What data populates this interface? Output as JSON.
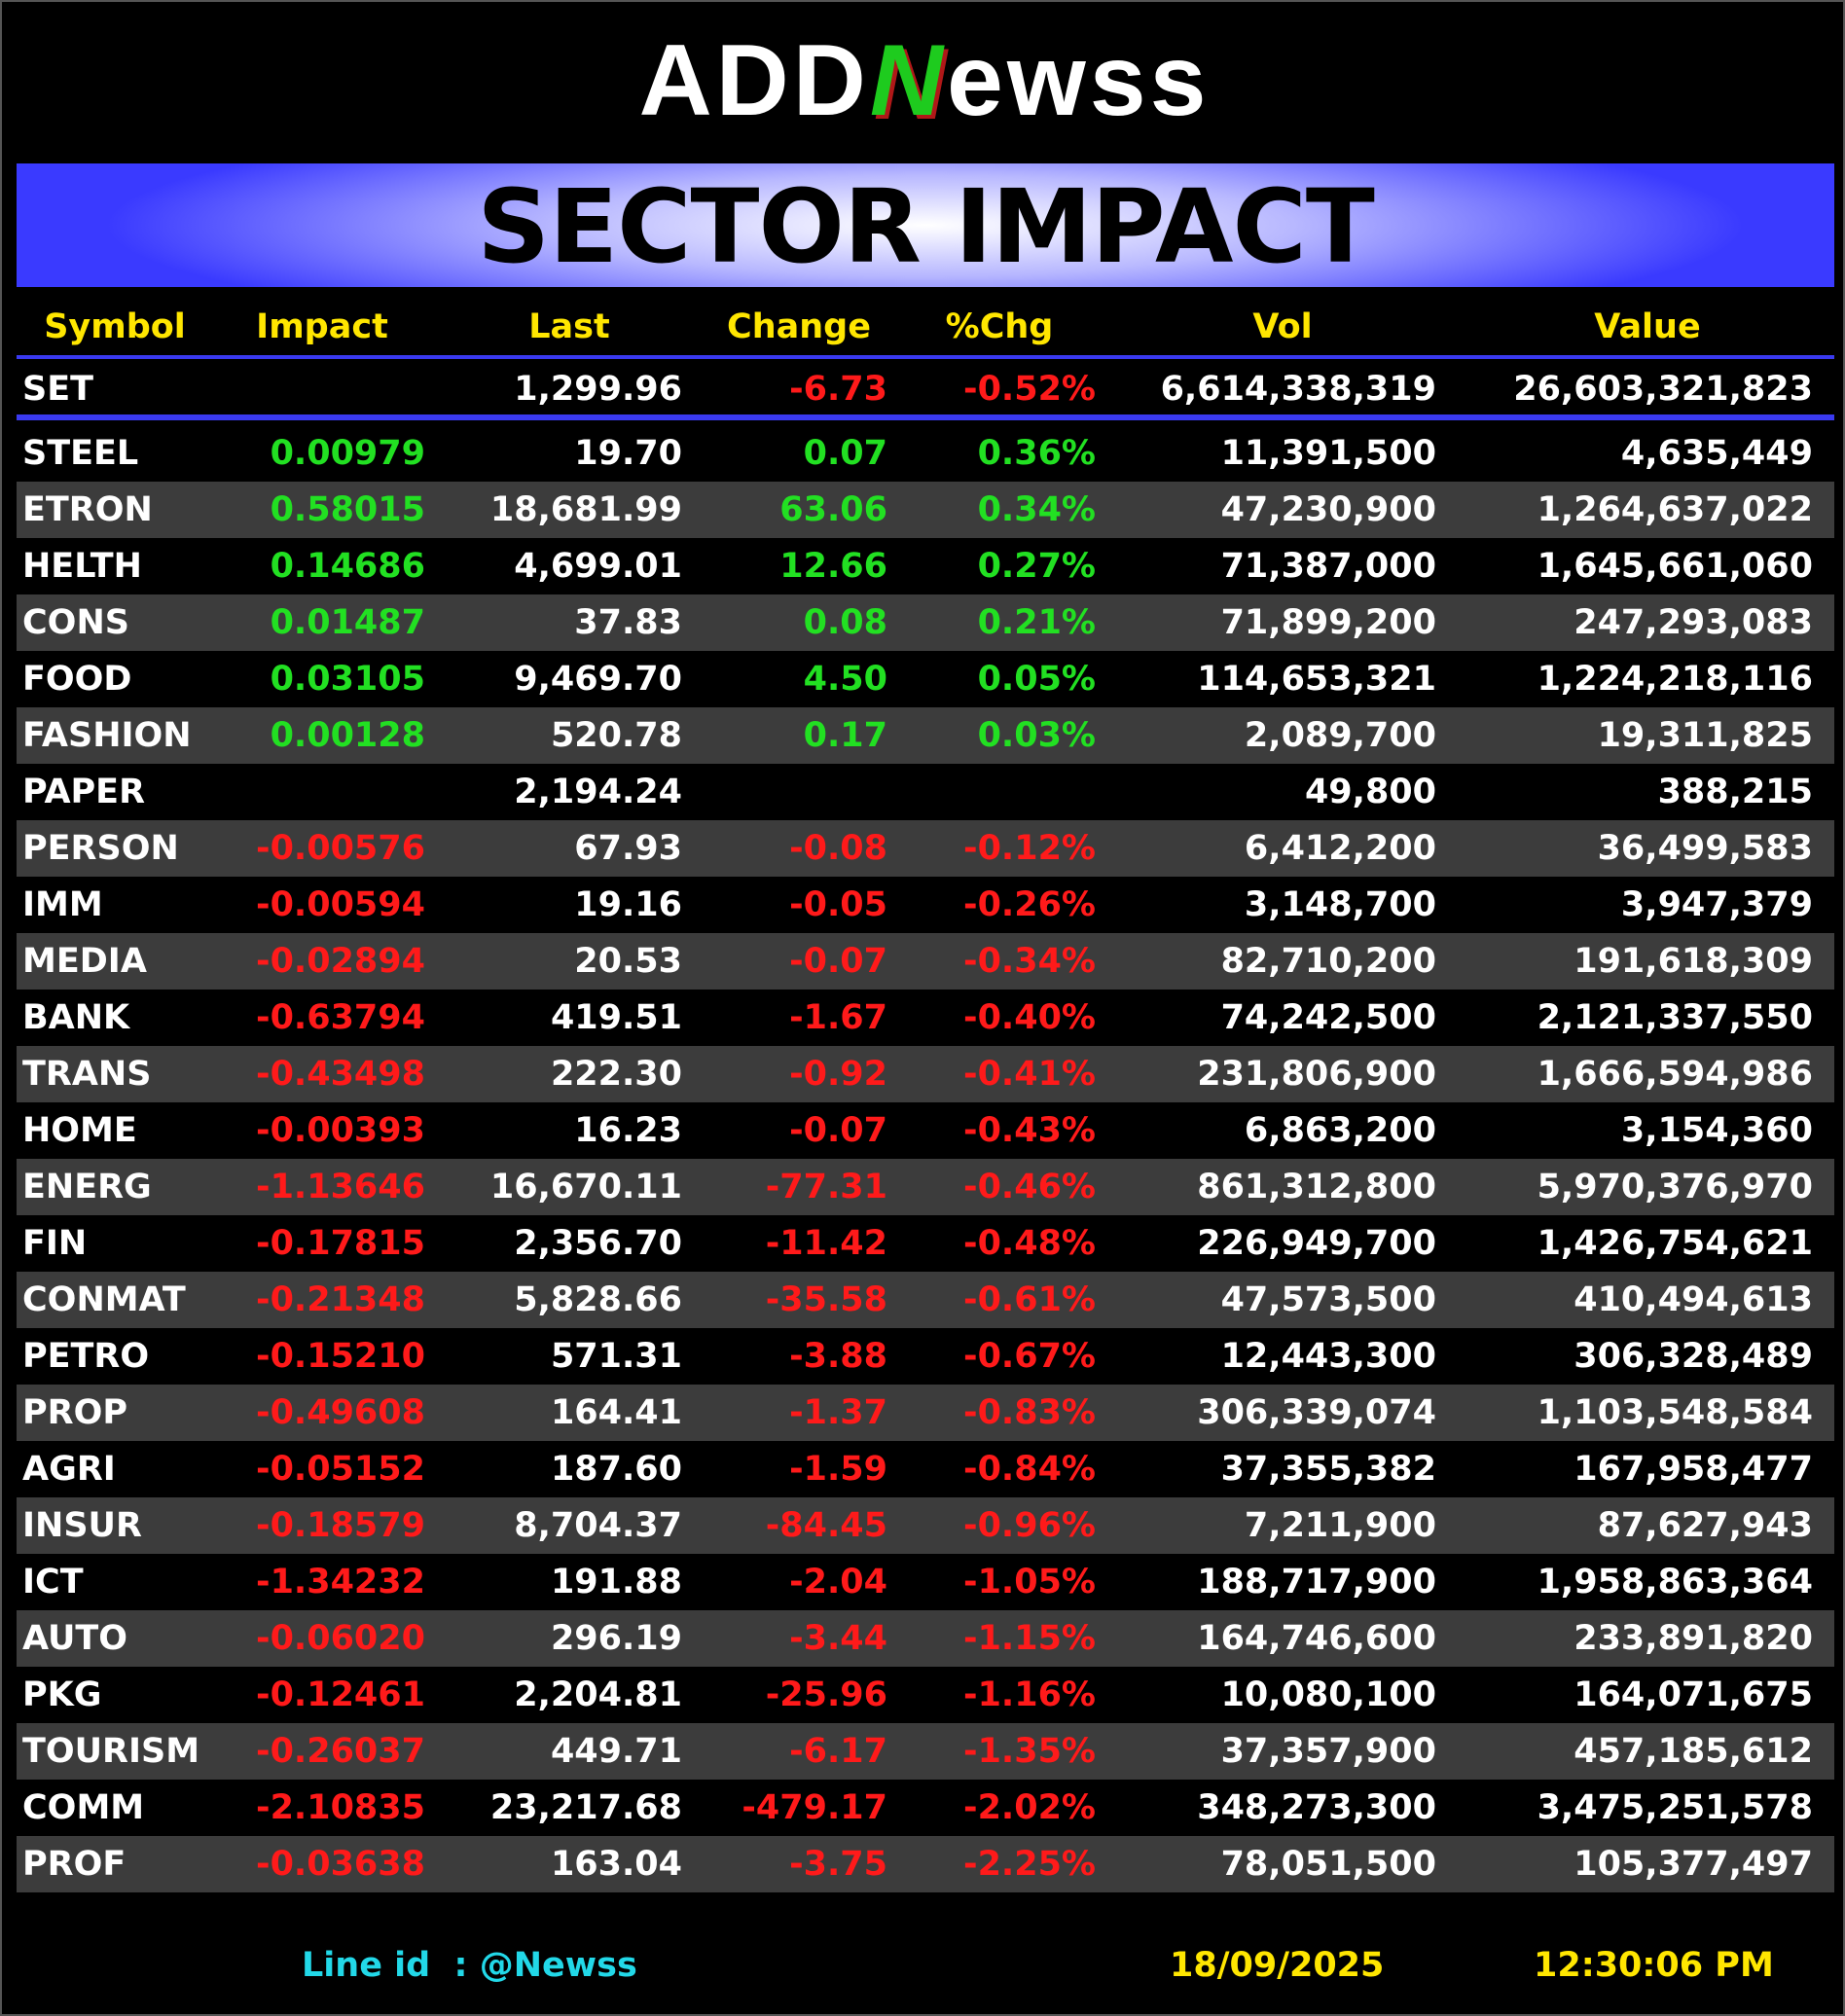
{
  "logo": {
    "left": "ADD",
    "mark": "N",
    "right": "ewss"
  },
  "title": "SECTOR IMPACT",
  "table": {
    "columns": [
      "Symbol",
      "Impact",
      "Last",
      "Change",
      "%Chg",
      "Vol",
      "Value"
    ],
    "index_row": [
      "SET",
      null,
      "1,299.96",
      "-6.73",
      "-0.52%",
      "6,614,338,319",
      "26,603,321,823"
    ],
    "rows": [
      [
        "STEEL",
        "0.00979",
        "19.70",
        "0.07",
        "0.36%",
        "11,391,500",
        "4,635,449"
      ],
      [
        "ETRON",
        "0.58015",
        "18,681.99",
        "63.06",
        "0.34%",
        "47,230,900",
        "1,264,637,022"
      ],
      [
        "HELTH",
        "0.14686",
        "4,699.01",
        "12.66",
        "0.27%",
        "71,387,000",
        "1,645,661,060"
      ],
      [
        "CONS",
        "0.01487",
        "37.83",
        "0.08",
        "0.21%",
        "71,899,200",
        "247,293,083"
      ],
      [
        "FOOD",
        "0.03105",
        "9,469.70",
        "4.50",
        "0.05%",
        "114,653,321",
        "1,224,218,116"
      ],
      [
        "FASHION",
        "0.00128",
        "520.78",
        "0.17",
        "0.03%",
        "2,089,700",
        "19,311,825"
      ],
      [
        "PAPER",
        null,
        "2,194.24",
        null,
        null,
        "49,800",
        "388,215"
      ],
      [
        "PERSON",
        "-0.00576",
        "67.93",
        "-0.08",
        "-0.12%",
        "6,412,200",
        "36,499,583"
      ],
      [
        "IMM",
        "-0.00594",
        "19.16",
        "-0.05",
        "-0.26%",
        "3,148,700",
        "3,947,379"
      ],
      [
        "MEDIA",
        "-0.02894",
        "20.53",
        "-0.07",
        "-0.34%",
        "82,710,200",
        "191,618,309"
      ],
      [
        "BANK",
        "-0.63794",
        "419.51",
        "-1.67",
        "-0.40%",
        "74,242,500",
        "2,121,337,550"
      ],
      [
        "TRANS",
        "-0.43498",
        "222.30",
        "-0.92",
        "-0.41%",
        "231,806,900",
        "1,666,594,986"
      ],
      [
        "HOME",
        "-0.00393",
        "16.23",
        "-0.07",
        "-0.43%",
        "6,863,200",
        "3,154,360"
      ],
      [
        "ENERG",
        "-1.13646",
        "16,670.11",
        "-77.31",
        "-0.46%",
        "861,312,800",
        "5,970,376,970"
      ],
      [
        "FIN",
        "-0.17815",
        "2,356.70",
        "-11.42",
        "-0.48%",
        "226,949,700",
        "1,426,754,621"
      ],
      [
        "CONMAT",
        "-0.21348",
        "5,828.66",
        "-35.58",
        "-0.61%",
        "47,573,500",
        "410,494,613"
      ],
      [
        "PETRO",
        "-0.15210",
        "571.31",
        "-3.88",
        "-0.67%",
        "12,443,300",
        "306,328,489"
      ],
      [
        "PROP",
        "-0.49608",
        "164.41",
        "-1.37",
        "-0.83%",
        "306,339,074",
        "1,103,548,584"
      ],
      [
        "AGRI",
        "-0.05152",
        "187.60",
        "-1.59",
        "-0.84%",
        "37,355,382",
        "167,958,477"
      ],
      [
        "INSUR",
        "-0.18579",
        "8,704.37",
        "-84.45",
        "-0.96%",
        "7,211,900",
        "87,627,943"
      ],
      [
        "ICT",
        "-1.34232",
        "191.88",
        "-2.04",
        "-1.05%",
        "188,717,900",
        "1,958,863,364"
      ],
      [
        "AUTO",
        "-0.06020",
        "296.19",
        "-3.44",
        "-1.15%",
        "164,746,600",
        "233,891,820"
      ],
      [
        "PKG",
        "-0.12461",
        "2,204.81",
        "-25.96",
        "-1.16%",
        "10,080,100",
        "164,071,675"
      ],
      [
        "TOURISM",
        "-0.26037",
        "449.71",
        "-6.17",
        "-1.35%",
        "37,357,900",
        "457,185,612"
      ],
      [
        "COMM",
        "-2.10835",
        "23,217.68",
        "-479.17",
        "-2.02%",
        "348,273,300",
        "3,475,251,578"
      ],
      [
        "PROF",
        "-0.03638",
        "163.04",
        "-3.75",
        "-2.25%",
        "78,051,500",
        "105,377,497"
      ]
    ]
  },
  "footer": {
    "line_id": "Line id  : @Newss",
    "date": "18/09/2025",
    "time": "12:30:06 PM"
  }
}
